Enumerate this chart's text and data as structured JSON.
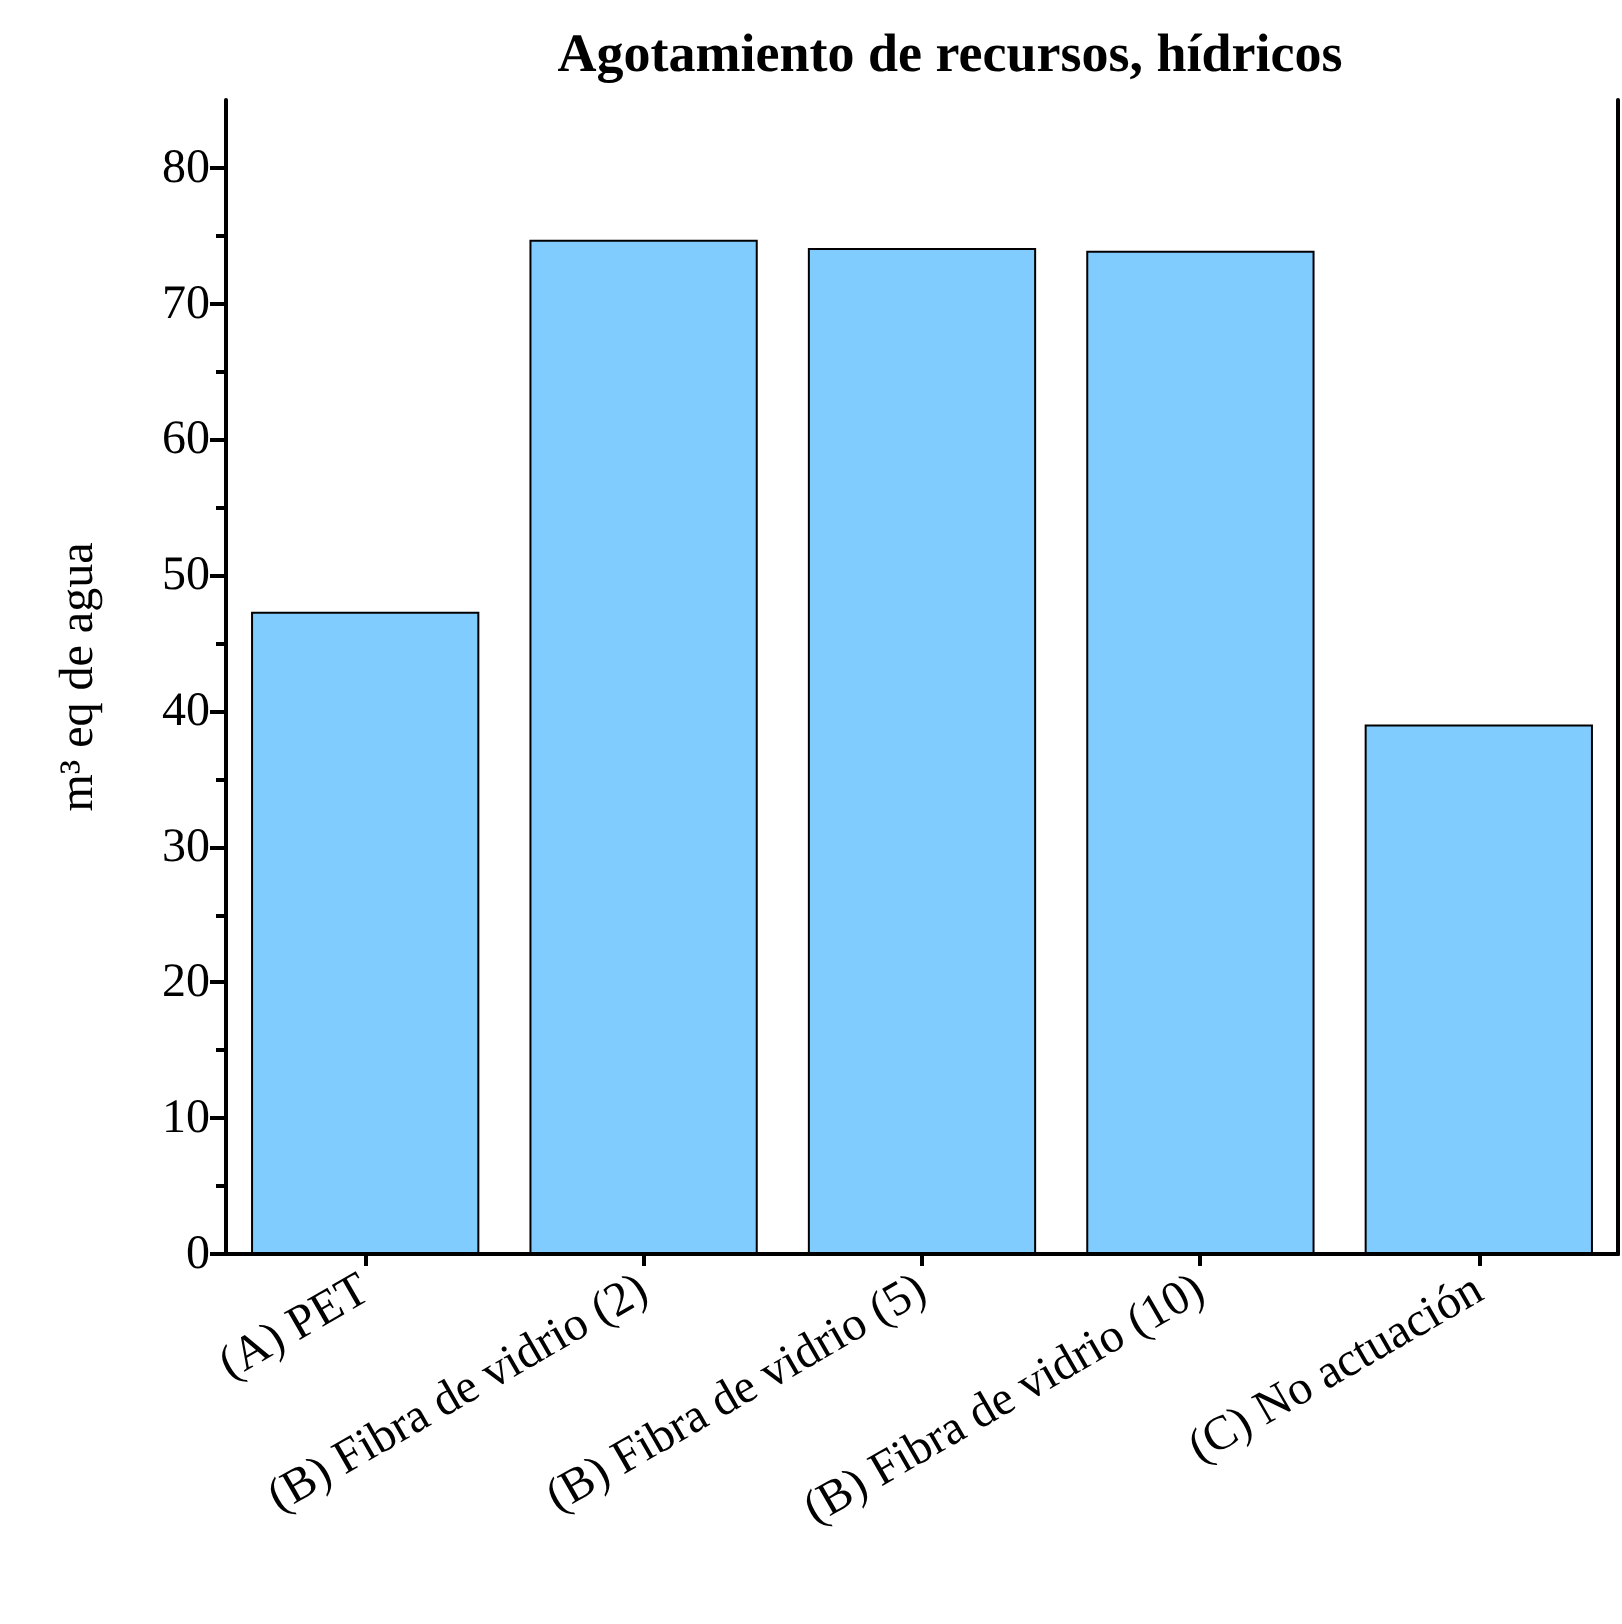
{
  "chart_data": {
    "type": "bar",
    "title": "Agotamiento de recursos, hídricos",
    "ylabel": "m³ eq de agua",
    "categories": [
      "(A) PET",
      "(B) Fibra de vidrio (2)",
      "(B) Fibra de vidrio (5)",
      "(B) Fibra de vidrio (10)",
      "(C) No actuación"
    ],
    "values": [
      47.3,
      74.7,
      74.1,
      73.9,
      39.0
    ],
    "color": "#80ccff",
    "ylim": [
      0,
      85
    ],
    "yticks": [
      0,
      10,
      20,
      30,
      40,
      50,
      60,
      70,
      80
    ],
    "grid": false
  }
}
